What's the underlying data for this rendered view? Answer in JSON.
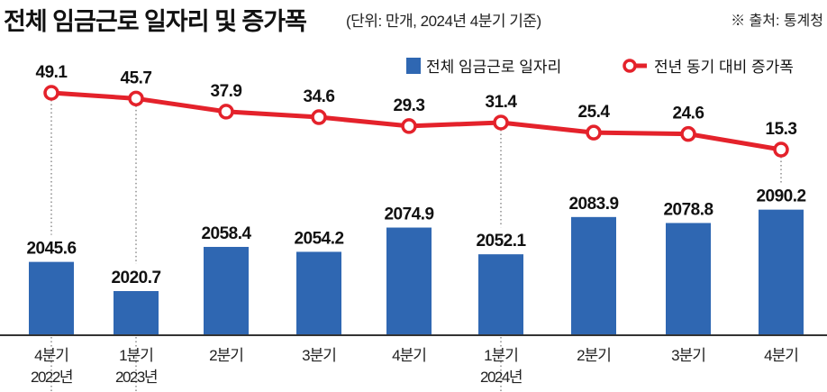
{
  "header": {
    "title": "전체 임금근로 일자리 및 증가폭",
    "subtitle": "(단위: 만개, 2024년 4분기 기준)",
    "source": "※ 출처: 통계청"
  },
  "colors": {
    "bar": "#2f67b2",
    "line": "#e4222b",
    "axis": "#333333"
  },
  "chart_data": {
    "type": "bar+line",
    "categories": [
      "4분기",
      "1분기",
      "2분기",
      "3분기",
      "4분기",
      "1분기",
      "2분기",
      "3분기",
      "4분기"
    ],
    "year_labels": [
      "2022년",
      "2023년",
      "",
      "",
      "",
      "2024년",
      "",
      "",
      ""
    ],
    "series": [
      {
        "name": "전체 임금근로 일자리",
        "type": "bar",
        "values": [
          2045.6,
          2020.7,
          2058.4,
          2054.2,
          2074.9,
          2052.1,
          2083.9,
          2078.8,
          2090.2
        ]
      },
      {
        "name": "전년 동기 대비 증가폭",
        "type": "line",
        "values": [
          49.1,
          45.7,
          37.9,
          34.6,
          29.3,
          31.4,
          25.4,
          24.6,
          15.3
        ]
      }
    ],
    "legend": "top-right",
    "grid": false
  }
}
